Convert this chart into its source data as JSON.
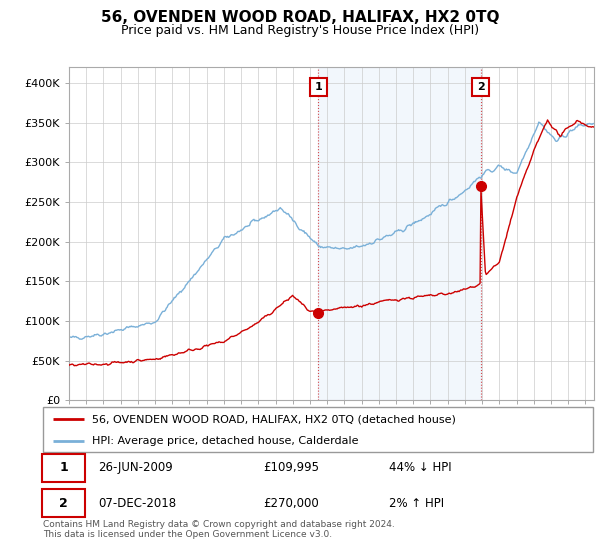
{
  "title": "56, OVENDEN WOOD ROAD, HALIFAX, HX2 0TQ",
  "subtitle": "Price paid vs. HM Land Registry's House Price Index (HPI)",
  "legend_line1": "56, OVENDEN WOOD ROAD, HALIFAX, HX2 0TQ (detached house)",
  "legend_line2": "HPI: Average price, detached house, Calderdale",
  "annotation1_date": "26-JUN-2009",
  "annotation1_price": "£109,995",
  "annotation1_hpi": "44% ↓ HPI",
  "annotation2_date": "07-DEC-2018",
  "annotation2_price": "£270,000",
  "annotation2_hpi": "2% ↑ HPI",
  "footer": "Contains HM Land Registry data © Crown copyright and database right 2024.\nThis data is licensed under the Open Government Licence v3.0.",
  "sale1_year": 2009.49,
  "sale1_price": 109995,
  "sale2_year": 2018.92,
  "sale2_price": 270000,
  "hpi_color": "#7ab0d8",
  "sold_color": "#cc0000",
  "shade_color": "#ddeeff",
  "ylim_min": 0,
  "ylim_max": 420000,
  "ytick_values": [
    0,
    50000,
    100000,
    150000,
    200000,
    250000,
    300000,
    350000,
    400000
  ],
  "ytick_labels": [
    "£0",
    "£50K",
    "£100K",
    "£150K",
    "£200K",
    "£250K",
    "£300K",
    "£350K",
    "£400K"
  ],
  "xmin": 1995.0,
  "xmax": 2025.5
}
